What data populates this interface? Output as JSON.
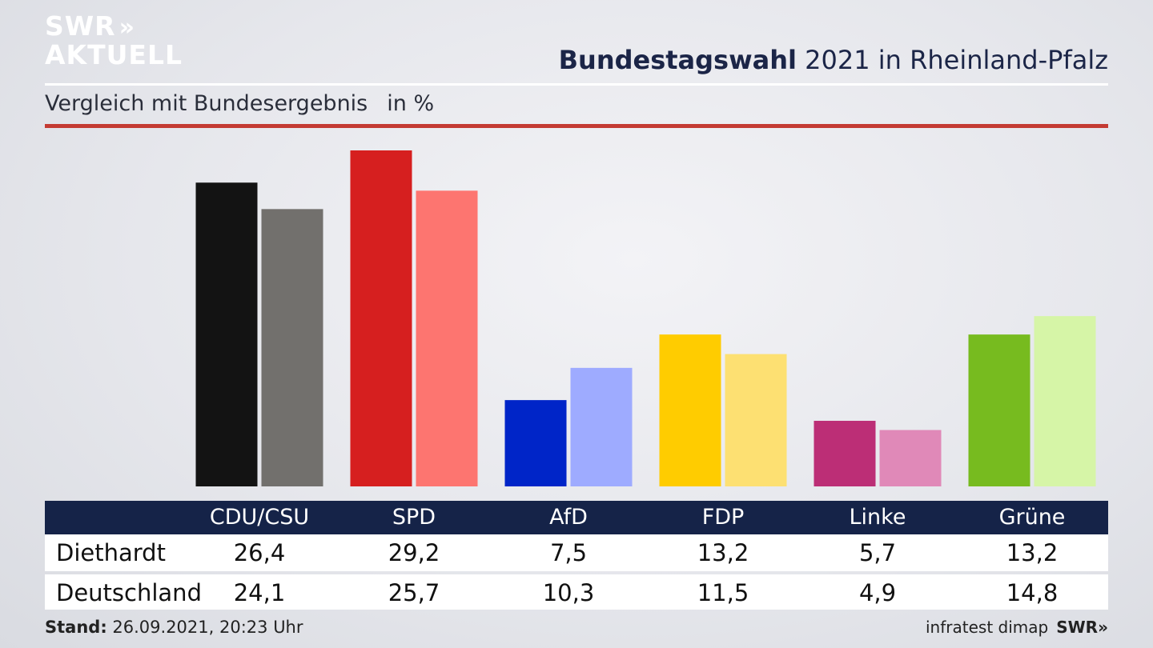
{
  "brand": {
    "line1": "SWR",
    "arrows": "»",
    "line2": "AKTUELL"
  },
  "header": {
    "title_bold": "Bundestagswahl",
    "title_rest": "2021 in Rheinland-Pfalz"
  },
  "subheader": {
    "text": "Vergleich mit Bundesergebnis",
    "unit": "in %"
  },
  "footer": {
    "stand_label": "Stand:",
    "stand_value": "26.09.2021, 20:23 Uhr",
    "source": "infratest dimap",
    "source_brand": "SWR»"
  },
  "table": {
    "row_labels": [
      "Diethardt",
      "Deutschland"
    ]
  },
  "chart_data": {
    "type": "bar",
    "categories": [
      "CDU/CSU",
      "SPD",
      "AfD",
      "FDP",
      "Linke",
      "Grüne"
    ],
    "series": [
      {
        "name": "Diethardt",
        "values": [
          26.4,
          29.2,
          7.5,
          13.2,
          5.7,
          13.2
        ],
        "labels": [
          "26,4",
          "29,2",
          "7,5",
          "13,2",
          "5,7",
          "13,2"
        ]
      },
      {
        "name": "Deutschland",
        "values": [
          24.1,
          25.7,
          10.3,
          11.5,
          4.9,
          14.8
        ],
        "labels": [
          "24,1",
          "25,7",
          "10,3",
          "11,5",
          "4,9",
          "14,8"
        ]
      }
    ],
    "colors": {
      "Diethardt": [
        "#131313",
        "#d61f1f",
        "#0025c8",
        "#ffcc00",
        "#bc2e76",
        "#77bb1f"
      ],
      "Deutschland": [
        "#72706d",
        "#fd7570",
        "#9eabff",
        "#fde072",
        "#e089b8",
        "#d6f5a7"
      ]
    },
    "ylim": [
      0,
      29.2
    ],
    "grid": false,
    "xlabel": "",
    "ylabel": ""
  }
}
